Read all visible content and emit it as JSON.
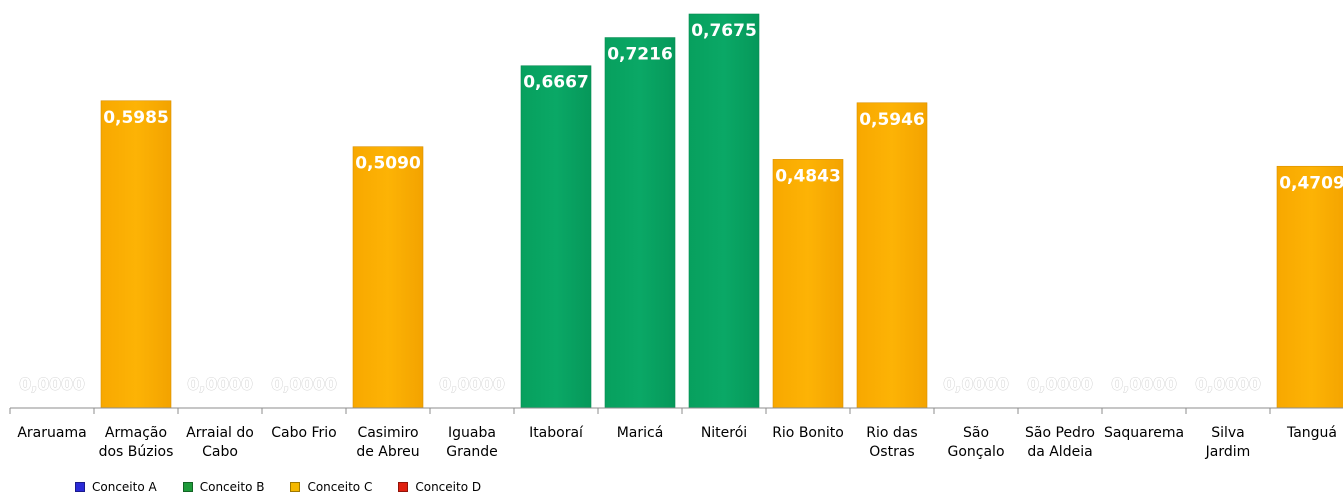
{
  "chart_data": {
    "type": "bar",
    "categories": [
      "Araruama",
      "Armação dos Búzios",
      "Arraial do Cabo",
      "Cabo Frio",
      "Casimiro de Abreu",
      "Iguaba Grande",
      "Itaboraí",
      "Maricá",
      "Niterói",
      "Rio Bonito",
      "Rio das Ostras",
      "São Gonçalo",
      "São Pedro da Aldeia",
      "Saquarema",
      "Silva Jardim",
      "Tanguá"
    ],
    "category_lines": [
      [
        "Araruama"
      ],
      [
        "Armação",
        "dos Búzios"
      ],
      [
        "Arraial do",
        "Cabo"
      ],
      [
        "Cabo Frio"
      ],
      [
        "Casimiro",
        "de Abreu"
      ],
      [
        "Iguaba",
        "Grande"
      ],
      [
        "Itaboraí"
      ],
      [
        "Maricá"
      ],
      [
        "Niterói"
      ],
      [
        "Rio Bonito"
      ],
      [
        "Rio das",
        "Ostras"
      ],
      [
        "São",
        "Gonçalo"
      ],
      [
        "São Pedro",
        "da Aldeia"
      ],
      [
        "Saquarema"
      ],
      [
        "Silva",
        "Jardim"
      ],
      [
        "Tanguá"
      ]
    ],
    "values": [
      0,
      0.5985,
      0,
      0,
      0.509,
      0,
      0.6667,
      0.7216,
      0.7675,
      0.4843,
      0.5946,
      0,
      0,
      0,
      0,
      0.4709
    ],
    "value_labels": [
      "0,0000",
      "0,5985",
      "0,0000",
      "0,0000",
      "0,5090",
      "0,0000",
      "0,6667",
      "0,7216",
      "0,7675",
      "0,4843",
      "0,5946",
      "0,0000",
      "0,0000",
      "0,0000",
      "0,0000",
      "0,4709"
    ],
    "concepts": [
      "",
      "C",
      "",
      "",
      "C",
      "",
      "B",
      "B",
      "B",
      "C",
      "C",
      "",
      "",
      "",
      "",
      "C"
    ],
    "ylim": [
      0,
      0.78
    ],
    "grid": false,
    "legend_position": "bottom-left",
    "legend": [
      {
        "label": "Conceito  A",
        "key": "A",
        "color": "#2a2ad8"
      },
      {
        "label": "Conceito  B",
        "key": "B",
        "color": "#1e9a3a"
      },
      {
        "label": "Conceito  C",
        "key": "C",
        "color": "#f5b800"
      },
      {
        "label": "Conceito  D",
        "key": "D",
        "color": "#e02010"
      }
    ],
    "bar_colors": {
      "A": "#2a2ad8",
      "B": "#09a462",
      "C": "#fbab00",
      "D": "#e02010"
    }
  }
}
